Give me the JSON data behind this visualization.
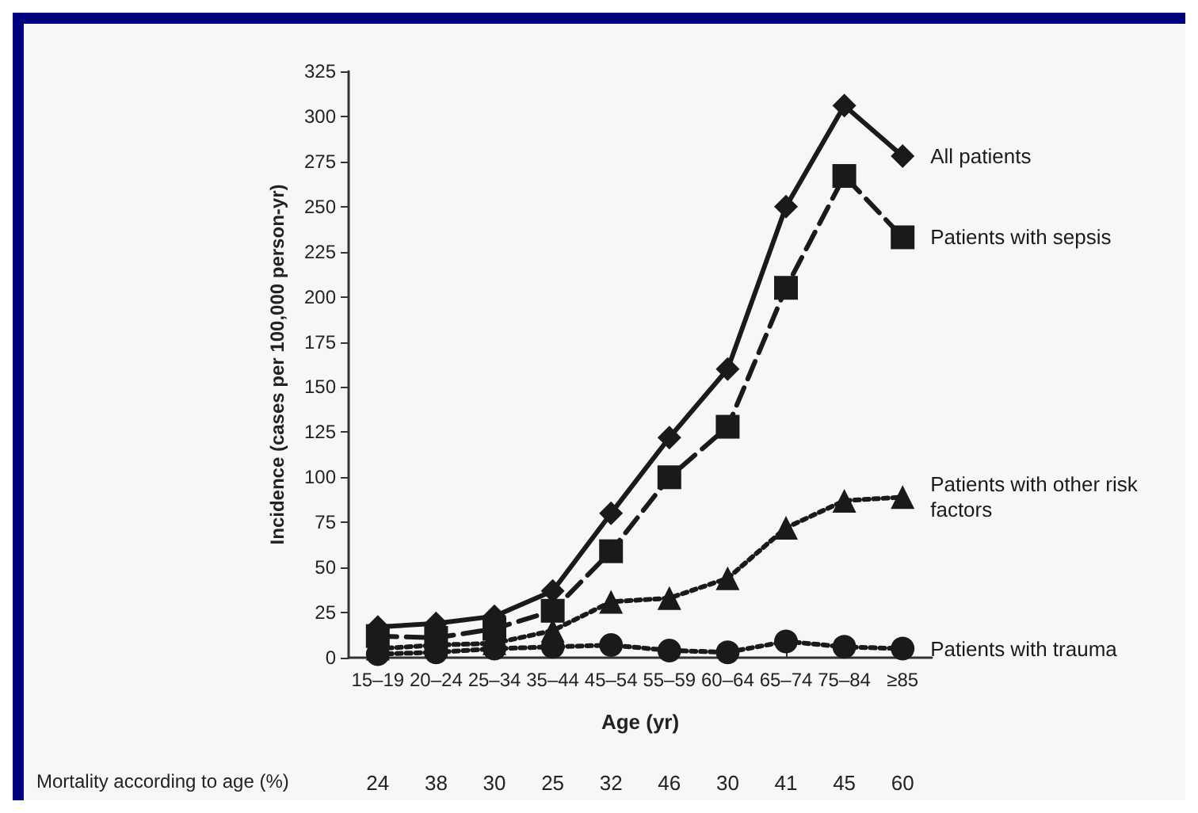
{
  "chart_data": {
    "type": "line",
    "xlabel": "Age (yr)",
    "ylabel": "Incidence (cases per 100,000 person-yr)",
    "categories": [
      "15–19",
      "20–24",
      "25–34",
      "35–44",
      "45–54",
      "55–59",
      "60–64",
      "65–74",
      "75–84",
      "≥85"
    ],
    "series": [
      {
        "name": "All patients",
        "color": "#1a1a1a",
        "marker": "diamond",
        "line_style": "solid",
        "values": [
          17,
          19,
          23,
          37,
          80,
          122,
          160,
          250,
          306,
          278
        ]
      },
      {
        "name": "Patients with sepsis",
        "color": "#1a1a1a",
        "marker": "square",
        "line_style": "dashed",
        "values": [
          12,
          11,
          16,
          26,
          59,
          100,
          128,
          205,
          267,
          233
        ]
      },
      {
        "name": "Patients with other risk factors",
        "color": "#1a1a1a",
        "marker": "triangle",
        "line_style": "dotted",
        "values": [
          5,
          7,
          8,
          15,
          31,
          33,
          44,
          72,
          87,
          89
        ]
      },
      {
        "name": "Patients with trauma",
        "color": "#1a1a1a",
        "marker": "circle",
        "line_style": "dotted",
        "values": [
          2,
          3,
          5,
          6,
          7,
          4,
          3,
          9,
          6,
          5
        ]
      }
    ],
    "ylim": [
      0,
      325
    ],
    "yticks": [
      0,
      25,
      50,
      75,
      100,
      125,
      150,
      175,
      200,
      225,
      250,
      275,
      300,
      325
    ],
    "grid": false,
    "legend": false,
    "annotations": [
      "Mortality according to age (%)",
      "24",
      "38",
      "30",
      "25",
      "32",
      "46",
      "30",
      "41",
      "45",
      "60"
    ]
  }
}
